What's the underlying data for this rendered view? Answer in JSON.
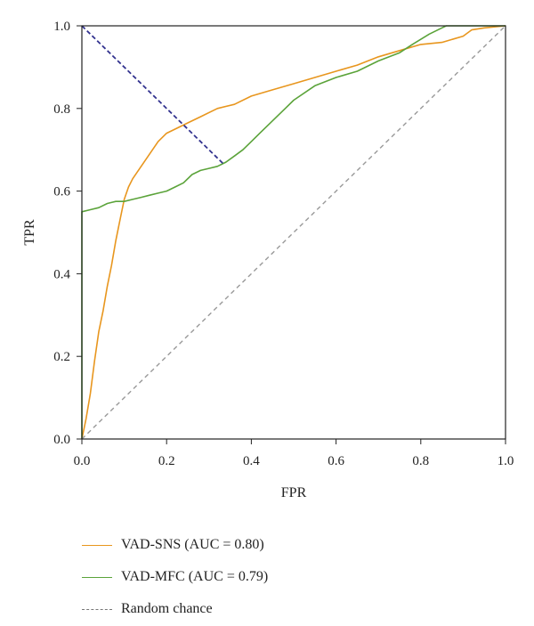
{
  "chart_data": {
    "type": "line",
    "title": "",
    "xlabel": "FPR",
    "ylabel": "TPR",
    "xlim": [
      0.0,
      1.0
    ],
    "ylim": [
      0.0,
      1.0
    ],
    "xticks": [
      "0.0",
      "0.2",
      "0.4",
      "0.6",
      "0.8",
      "1.0"
    ],
    "yticks": [
      "0.0",
      "0.2",
      "0.4",
      "0.6",
      "0.8",
      "1.0"
    ],
    "grid": false,
    "legend_position": "below",
    "series": [
      {
        "name": "VAD-SNS (AUC = 0.80)",
        "color": "#E8961E",
        "style": "solid",
        "x": [
          0.0,
          0.01,
          0.02,
          0.03,
          0.04,
          0.05,
          0.06,
          0.07,
          0.08,
          0.09,
          0.1,
          0.11,
          0.12,
          0.14,
          0.16,
          0.18,
          0.2,
          0.22,
          0.25,
          0.28,
          0.32,
          0.36,
          0.4,
          0.45,
          0.5,
          0.55,
          0.6,
          0.65,
          0.7,
          0.75,
          0.8,
          0.85,
          0.9,
          0.92,
          0.95,
          1.0
        ],
        "y": [
          0.0,
          0.05,
          0.11,
          0.19,
          0.26,
          0.31,
          0.37,
          0.42,
          0.48,
          0.53,
          0.58,
          0.61,
          0.63,
          0.66,
          0.69,
          0.72,
          0.74,
          0.75,
          0.765,
          0.78,
          0.8,
          0.81,
          0.83,
          0.845,
          0.86,
          0.875,
          0.89,
          0.905,
          0.925,
          0.94,
          0.955,
          0.96,
          0.975,
          0.99,
          0.995,
          1.0
        ]
      },
      {
        "name": "VAD-MFC (AUC = 0.79)",
        "color": "#5BA33A",
        "style": "solid",
        "x": [
          0.0,
          0.0,
          0.0,
          0.02,
          0.04,
          0.06,
          0.08,
          0.1,
          0.12,
          0.14,
          0.16,
          0.18,
          0.2,
          0.22,
          0.24,
          0.26,
          0.28,
          0.3,
          0.32,
          0.34,
          0.36,
          0.38,
          0.4,
          0.42,
          0.45,
          0.48,
          0.5,
          0.55,
          0.6,
          0.65,
          0.7,
          0.75,
          0.78,
          0.82,
          0.85,
          0.86,
          1.0
        ],
        "y": [
          0.0,
          0.2,
          0.55,
          0.555,
          0.56,
          0.57,
          0.575,
          0.575,
          0.58,
          0.585,
          0.59,
          0.595,
          0.6,
          0.61,
          0.62,
          0.64,
          0.65,
          0.655,
          0.66,
          0.67,
          0.685,
          0.7,
          0.72,
          0.74,
          0.77,
          0.8,
          0.82,
          0.855,
          0.875,
          0.89,
          0.915,
          0.935,
          0.955,
          0.98,
          0.995,
          1.0,
          1.0
        ]
      },
      {
        "name": "Random chance",
        "color": "#999999",
        "style": "dashed",
        "x": [
          0.0,
          1.0
        ],
        "y": [
          0.0,
          1.0
        ]
      }
    ],
    "annotations": [
      {
        "type": "dashed-line",
        "color": "#33338F",
        "x": [
          0.0,
          0.333
        ],
        "y": [
          1.0,
          0.667
        ]
      }
    ]
  }
}
